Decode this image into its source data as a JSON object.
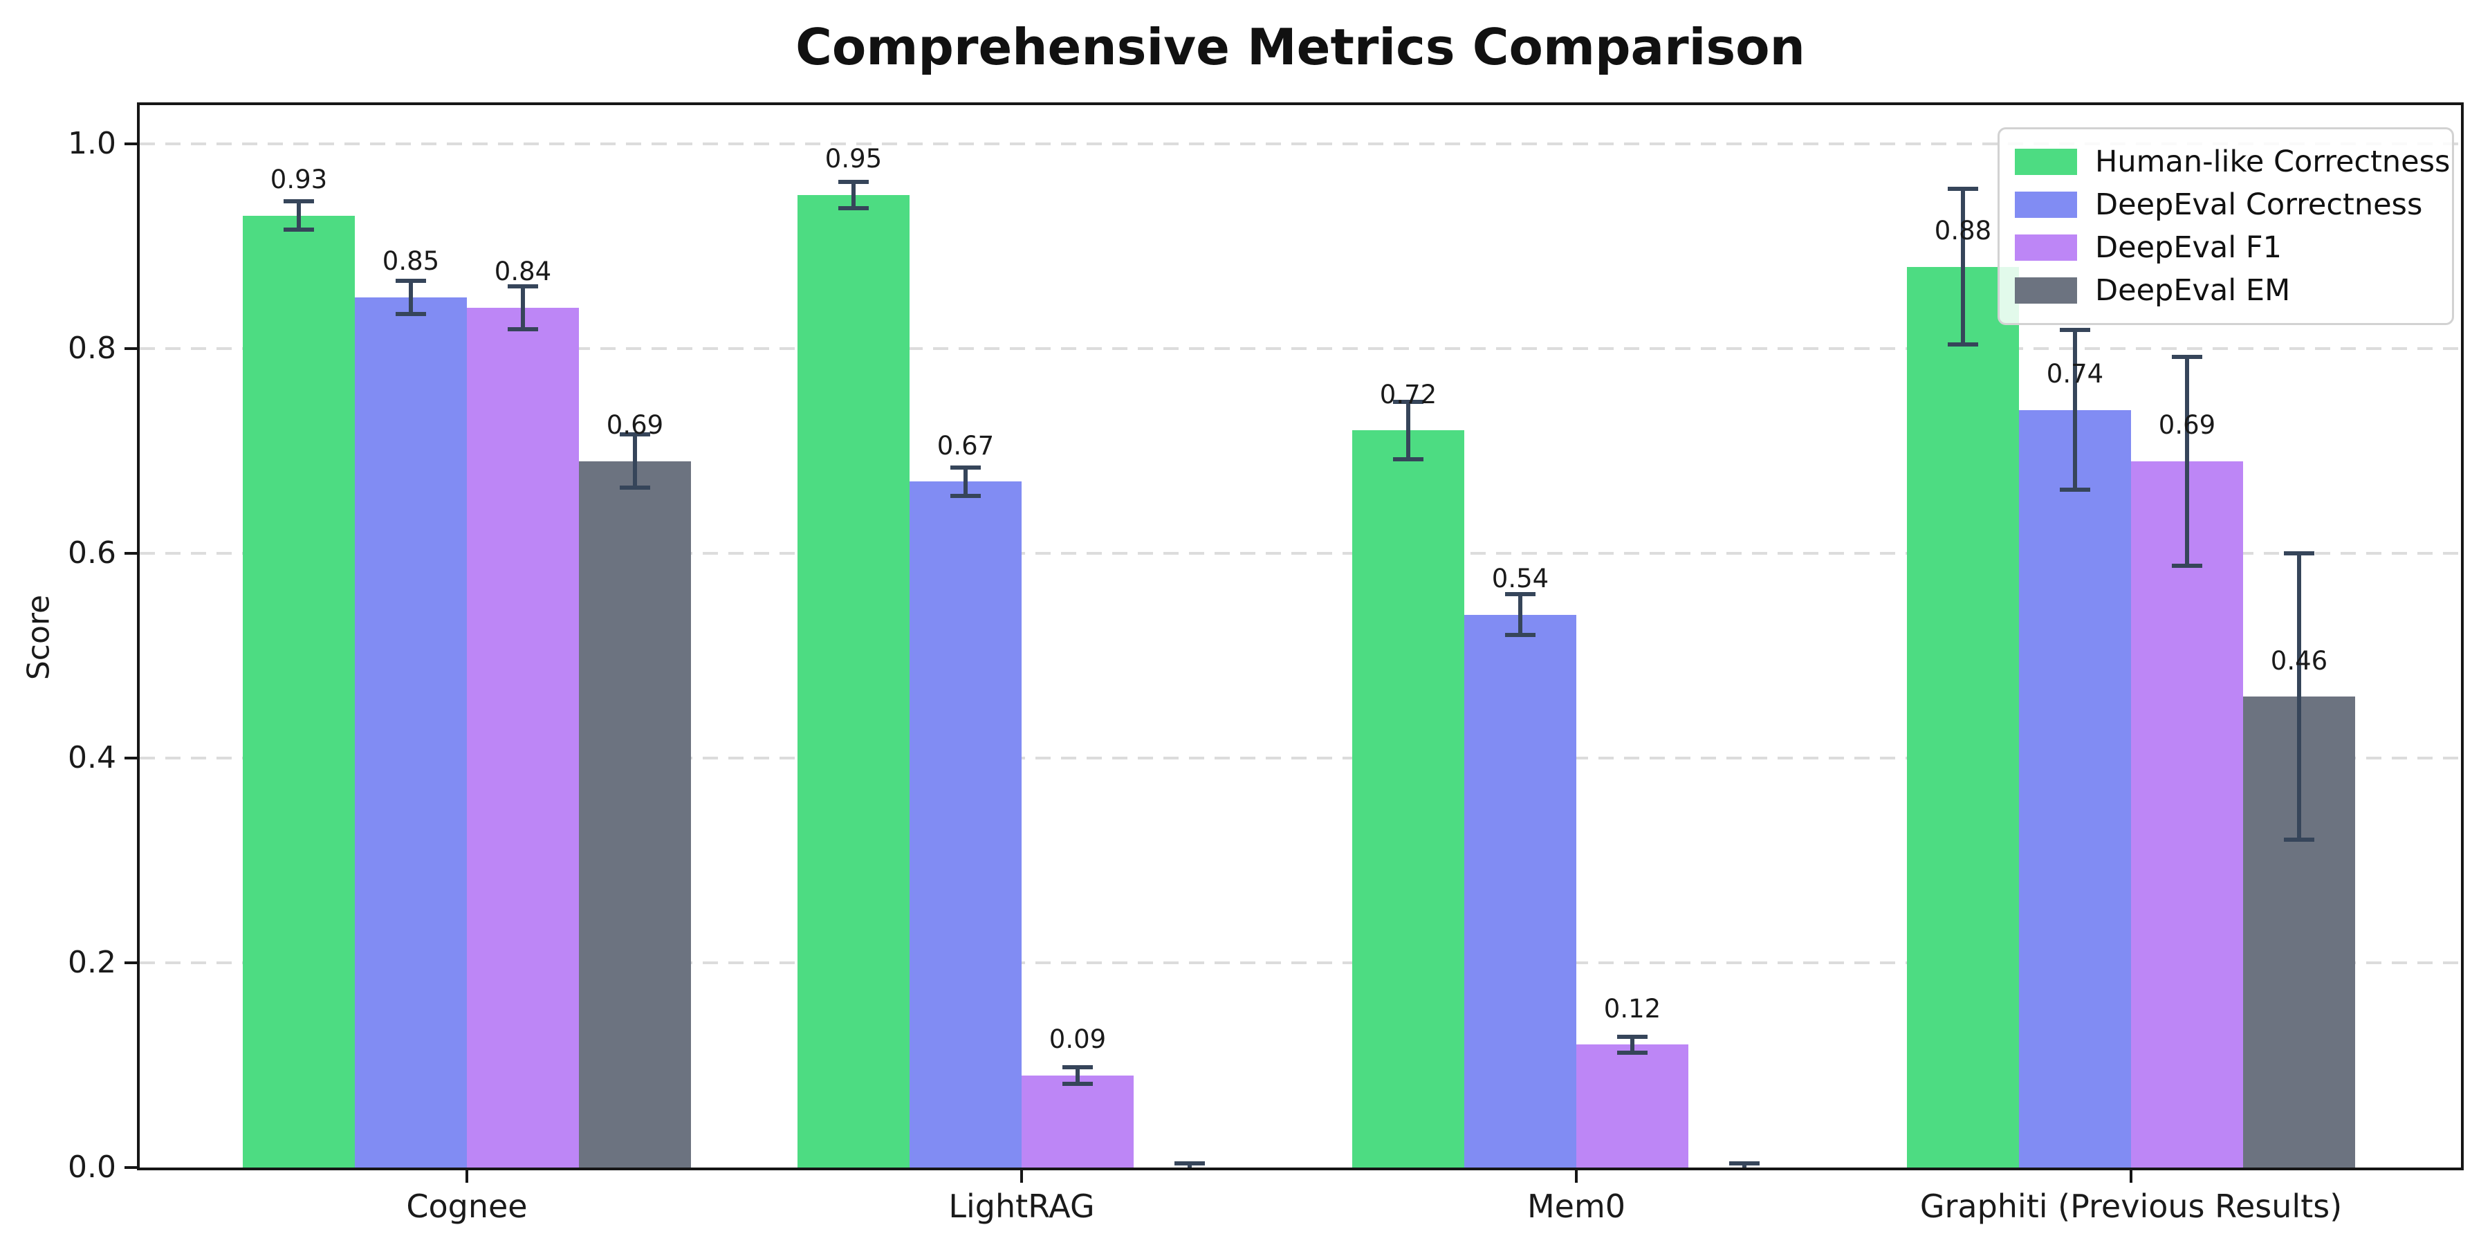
{
  "chart_data": {
    "type": "bar",
    "title": "Comprehensive Metrics Comparison",
    "ylabel": "Score",
    "xlabel": "",
    "categories": [
      "Cognee",
      "LightRAG",
      "Mem0",
      "Graphiti (Previous Results)"
    ],
    "series": [
      {
        "name": "Human-like Correctness",
        "color": "#4ddc82",
        "values": [
          0.93,
          0.95,
          0.72,
          0.88
        ],
        "errors": [
          0.014,
          0.013,
          0.028,
          0.076
        ],
        "bar_labels": [
          "0.93",
          "0.95",
          "0.72",
          "0.88"
        ]
      },
      {
        "name": "DeepEval Correctness",
        "color": "#818cf3",
        "values": [
          0.85,
          0.67,
          0.54,
          0.74
        ],
        "errors": [
          0.016,
          0.014,
          0.02,
          0.078
        ],
        "bar_labels": [
          "0.85",
          "0.67",
          "0.54",
          "0.74"
        ]
      },
      {
        "name": "DeepEval F1",
        "color": "#bd86f6",
        "values": [
          0.84,
          0.09,
          0.12,
          0.69
        ],
        "errors": [
          0.021,
          0.008,
          0.008,
          0.102
        ],
        "bar_labels": [
          "0.84",
          "0.09",
          "0.12",
          "0.69"
        ]
      },
      {
        "name": "DeepEval EM",
        "color": "#6c7380",
        "values": [
          0.69,
          0.0,
          0.0,
          0.46
        ],
        "errors": [
          0.026,
          0.004,
          0.004,
          0.14
        ],
        "bar_labels": [
          "0.69",
          "",
          "",
          "0.46"
        ]
      }
    ],
    "yticks": [
      "0.0",
      "0.2",
      "0.4",
      "0.6",
      "0.8",
      "1.0"
    ],
    "ylim": [
      0.0,
      1.04
    ],
    "grid": "dashed-horizontal",
    "grid_color": "#dcdcdc",
    "legend_position": "upper-right",
    "error_bar_color": "#36455a",
    "spine_color": "#161616",
    "background_color": "#ffffff"
  }
}
